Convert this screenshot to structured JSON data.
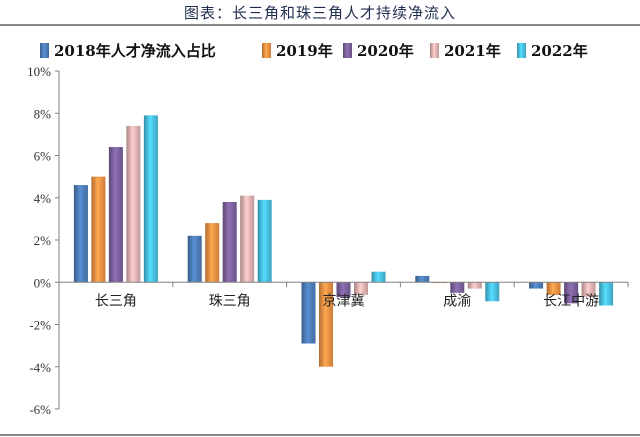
{
  "title": "图表：长三角和珠三角人才持续净流入",
  "chart_data": {
    "type": "bar",
    "categories": [
      "长三角",
      "珠三角",
      "京津冀",
      "成渝",
      "长江中游"
    ],
    "series": [
      {
        "name": "2018年人才净流入占比",
        "color": "#4f81bd",
        "values": [
          4.6,
          2.2,
          -2.9,
          0.3,
          -0.3
        ]
      },
      {
        "name": "2019年",
        "color": "#f79646",
        "values": [
          5.0,
          2.8,
          -4.0,
          0.0,
          -0.6
        ]
      },
      {
        "name": "2020年",
        "color": "#8064a2",
        "values": [
          6.4,
          3.8,
          -0.7,
          -0.5,
          -1.0
        ]
      },
      {
        "name": "2021年",
        "color": "#e6b9b8",
        "values": [
          7.4,
          4.1,
          -0.6,
          -0.3,
          -0.7
        ]
      },
      {
        "name": "2022年",
        "color": "#4bc6e8",
        "values": [
          7.9,
          3.9,
          0.5,
          -0.9,
          -1.1
        ]
      }
    ],
    "ylim": [
      -6,
      10
    ],
    "yticks": [
      "10%",
      "8%",
      "6%",
      "4%",
      "2%",
      "0%",
      "-2%",
      "-4%",
      "-6%"
    ],
    "legend_position": "top"
  }
}
